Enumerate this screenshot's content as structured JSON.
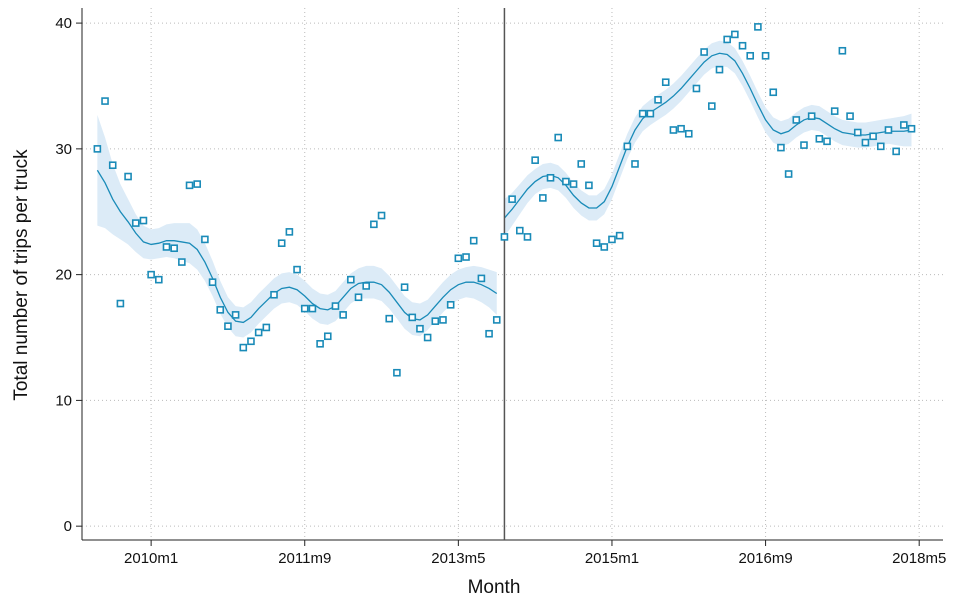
{
  "chart_data": {
    "type": "scatter",
    "x_label": "Month",
    "y_label": "Total number of trips per truck",
    "x": [
      593,
      594,
      595,
      596,
      597,
      598,
      599,
      600,
      601,
      602,
      603,
      604,
      605,
      606,
      607,
      608,
      609,
      610,
      611,
      612,
      613,
      614,
      615,
      616,
      617,
      618,
      619,
      620,
      621,
      622,
      623,
      624,
      625,
      626,
      627,
      628,
      629,
      630,
      631,
      632,
      633,
      634,
      635,
      636,
      637,
      638,
      639,
      640,
      641,
      642,
      643,
      644,
      645,
      646,
      647,
      648,
      649,
      650,
      651,
      652,
      653,
      654,
      655,
      656,
      657,
      658,
      659,
      660,
      661,
      662,
      663,
      664,
      665,
      666,
      667,
      668,
      669,
      670,
      671,
      672,
      673,
      674,
      675,
      676,
      677,
      678,
      679,
      680,
      681,
      682,
      683,
      684,
      685,
      686,
      687,
      688,
      689,
      690,
      691,
      692,
      693,
      694,
      695,
      696,
      697,
      698,
      699
    ],
    "xlim": [
      591,
      703.1
    ],
    "xticks": [
      {
        "value": 600,
        "label": "2010m1"
      },
      {
        "value": 620,
        "label": "2011m9"
      },
      {
        "value": 640,
        "label": "2013m5"
      },
      {
        "value": 660,
        "label": "2015m1"
      },
      {
        "value": 680,
        "label": "2016m9"
      },
      {
        "value": 700,
        "label": "2018m5"
      }
    ],
    "ylim": [
      -1.1,
      41.2
    ],
    "yticks": [
      0,
      10,
      20,
      30,
      40
    ],
    "grid": true,
    "break_x": 646,
    "break_color": "#555555",
    "series": [
      {
        "color": "#1a8bb8",
        "values": [
          30.0,
          33.8,
          28.7,
          17.7,
          27.8,
          24.1,
          24.3,
          20.0,
          19.6,
          22.2,
          22.1,
          21.0,
          27.1,
          27.2,
          22.8,
          19.4,
          17.2,
          15.9,
          16.8,
          14.2,
          14.7,
          15.4,
          15.8,
          18.4,
          22.5,
          23.4,
          20.4,
          17.3,
          17.3,
          14.5,
          15.1,
          17.5,
          16.8,
          19.6,
          18.2,
          19.1,
          24.0,
          24.7,
          16.5,
          12.2,
          19.0,
          16.6,
          15.7,
          15.0,
          16.3,
          16.4,
          17.6,
          21.3,
          21.4,
          22.7,
          19.7,
          15.3,
          16.4,
          23.0,
          26.0,
          23.5,
          23.0,
          29.1,
          26.1,
          27.7,
          30.9,
          27.4,
          27.2,
          28.8,
          27.1,
          22.5,
          22.2,
          22.8,
          23.1,
          30.2,
          28.8,
          32.8,
          32.8,
          33.9,
          35.3,
          31.5,
          31.6,
          31.2,
          34.8,
          37.7,
          33.4,
          36.3,
          38.7,
          39.1,
          38.2,
          37.4,
          39.7,
          37.4,
          34.5,
          30.1,
          28.0,
          32.3,
          30.3,
          32.6,
          30.8,
          30.6,
          33.0,
          37.8,
          32.6,
          31.3,
          30.5,
          31.0,
          30.2,
          31.5,
          29.8,
          31.9,
          31.6
        ]
      }
    ],
    "fit": {
      "color": "#1a8bb8",
      "band_color": "#dcebf7",
      "values": [
        28.3,
        27.3,
        26.0,
        25.0,
        24.2,
        23.3,
        22.6,
        22.4,
        22.5,
        22.7,
        22.7,
        22.6,
        22.5,
        22.0,
        21.0,
        19.7,
        18.2,
        17.0,
        16.3,
        16.2,
        16.6,
        17.3,
        17.9,
        18.5,
        18.9,
        19.0,
        18.8,
        18.3,
        17.7,
        17.3,
        17.2,
        17.5,
        18.2,
        18.9,
        19.3,
        19.4,
        19.4,
        19.2,
        18.6,
        17.8,
        17.0,
        16.5,
        16.4,
        16.8,
        17.5,
        18.2,
        18.8,
        19.2,
        19.4,
        19.4,
        19.2,
        18.9,
        18.5,
        24.5,
        25.2,
        26.0,
        26.8,
        27.4,
        27.8,
        27.9,
        27.7,
        27.1,
        26.3,
        25.7,
        25.3,
        25.3,
        25.8,
        27.0,
        28.6,
        30.2,
        31.5,
        32.4,
        32.9,
        33.3,
        33.7,
        34.2,
        34.8,
        35.5,
        36.2,
        36.9,
        37.4,
        37.6,
        37.5,
        37.0,
        36.0,
        34.8,
        33.5,
        32.3,
        31.5,
        31.2,
        31.4,
        31.9,
        32.3,
        32.5,
        32.4,
        32.0,
        31.6,
        31.3,
        31.2,
        31.1,
        31.1,
        31.2,
        31.3,
        31.4,
        31.4,
        31.4,
        31.5
      ],
      "lower": [
        23.9,
        23.7,
        23.2,
        22.8,
        22.4,
        21.8,
        21.3,
        21.2,
        21.3,
        21.4,
        21.3,
        21.1,
        20.9,
        20.4,
        19.5,
        18.3,
        16.9,
        15.8,
        15.1,
        15.0,
        15.4,
        16.1,
        16.7,
        17.3,
        17.7,
        17.8,
        17.6,
        17.1,
        16.5,
        16.1,
        16.0,
        16.3,
        17.0,
        17.7,
        18.1,
        18.1,
        18.1,
        17.9,
        17.3,
        16.5,
        15.7,
        15.2,
        15.1,
        15.6,
        16.3,
        17.0,
        17.6,
        18.0,
        18.2,
        18.1,
        17.8,
        17.4,
        16.8,
        23.0,
        23.9,
        24.8,
        25.7,
        26.4,
        26.8,
        26.9,
        26.7,
        26.1,
        25.3,
        24.7,
        24.3,
        24.3,
        24.8,
        26.0,
        27.6,
        29.2,
        30.5,
        31.4,
        31.9,
        32.3,
        32.7,
        33.2,
        33.8,
        34.5,
        35.2,
        35.9,
        36.4,
        36.6,
        36.5,
        36.0,
        35.0,
        33.8,
        32.5,
        31.3,
        30.5,
        30.2,
        30.4,
        30.9,
        31.3,
        31.5,
        31.4,
        31.0,
        30.6,
        30.3,
        30.2,
        30.1,
        30.1,
        30.2,
        30.3,
        30.4,
        30.3,
        30.2,
        30.2
      ],
      "upper": [
        32.7,
        30.9,
        28.8,
        27.2,
        26.0,
        24.8,
        23.9,
        23.6,
        23.7,
        24.0,
        24.1,
        24.1,
        24.1,
        23.6,
        22.5,
        21.1,
        19.5,
        18.2,
        17.5,
        17.4,
        17.8,
        18.5,
        19.1,
        19.7,
        20.1,
        20.2,
        20.0,
        19.5,
        18.9,
        18.5,
        18.4,
        18.7,
        19.4,
        20.1,
        20.5,
        20.7,
        20.7,
        20.5,
        19.9,
        19.1,
        18.3,
        17.8,
        17.7,
        18.0,
        18.7,
        19.4,
        20.0,
        20.4,
        20.6,
        20.7,
        20.6,
        20.4,
        20.2,
        26.0,
        26.5,
        27.2,
        27.9,
        28.4,
        28.8,
        28.9,
        28.7,
        28.1,
        27.3,
        26.7,
        26.3,
        26.3,
        26.8,
        28.0,
        29.6,
        31.2,
        32.5,
        33.4,
        33.9,
        34.3,
        34.7,
        35.2,
        35.8,
        36.5,
        37.2,
        37.9,
        38.4,
        38.6,
        38.5,
        38.0,
        37.0,
        35.8,
        34.5,
        33.3,
        32.5,
        32.2,
        32.4,
        32.9,
        33.3,
        33.5,
        33.4,
        33.0,
        32.6,
        32.3,
        32.2,
        32.1,
        32.1,
        32.2,
        32.3,
        32.4,
        32.5,
        32.6,
        32.8
      ]
    }
  }
}
